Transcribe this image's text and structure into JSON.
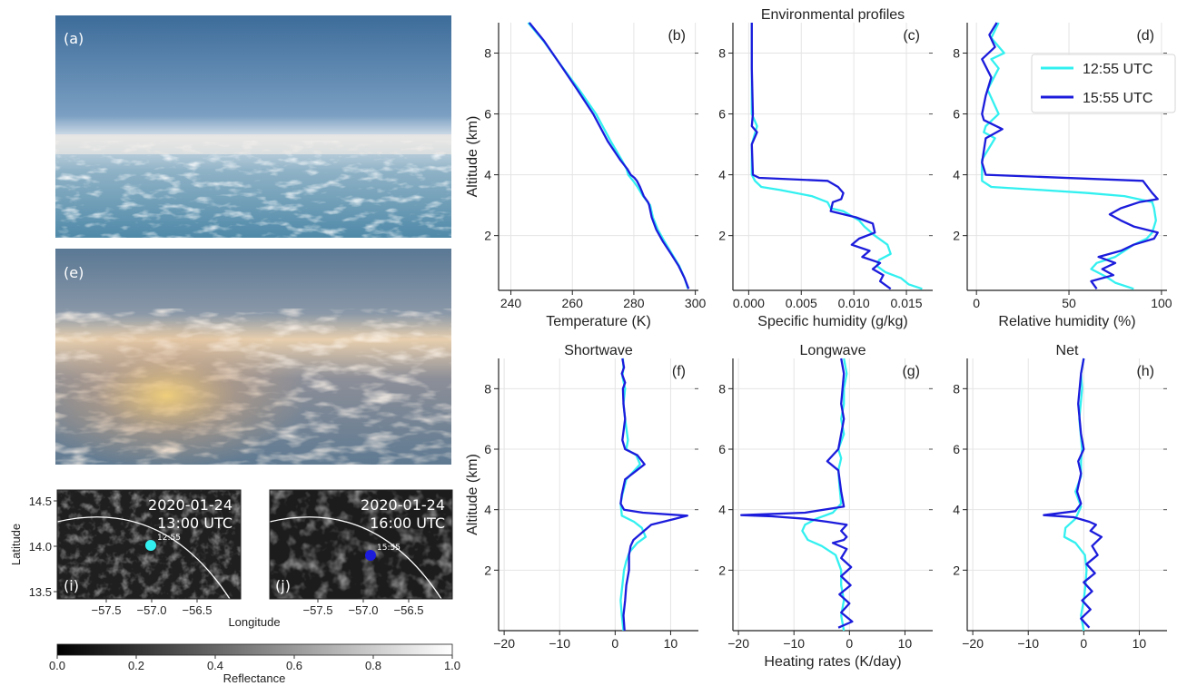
{
  "figure": {
    "photo_a_label": "(a)",
    "photo_e_label": "(e)",
    "colors": {
      "c1255": "#33f0f0",
      "c1555": "#1c1cdc"
    }
  },
  "maps": [
    {
      "label": "(i)",
      "date": "2020-01-24",
      "time": "13:00 UTC",
      "point_label": "12:55",
      "point_color": "#33f0f0"
    },
    {
      "label": "(j)",
      "date": "2020-01-24",
      "time": "16:00 UTC",
      "point_label": "15:55",
      "point_color": "#1c1cdc"
    }
  ],
  "map_axes": {
    "ylabel": "Latitude",
    "xlabel": "Longitude",
    "yticks": [
      "14.5",
      "14.0",
      "13.5"
    ],
    "xticks": [
      "−57.5",
      "−57.0",
      "−56.5"
    ]
  },
  "colorbar": {
    "label": "Reflectance",
    "ticks": [
      "0.0",
      "0.2",
      "0.4",
      "0.6",
      "0.8",
      "1.0"
    ],
    "range": [
      0,
      1
    ]
  },
  "chart_data": [
    {
      "type": "line",
      "panel": "(b)",
      "xlabel": "Temperature (K)",
      "ylabel": "Altitude (km)",
      "xlim": [
        236,
        301
      ],
      "ylim": [
        0.2,
        9
      ],
      "xticks": [
        240,
        260,
        280,
        300
      ],
      "yticks": [
        2,
        4,
        6,
        8
      ],
      "series": [
        {
          "name": "12:55 UTC",
          "color": "#33f0f0",
          "x": [
            297.6,
            296.5,
            294.8,
            292.4,
            290,
            287.8,
            286.2,
            285.3,
            284.5,
            283,
            281.2,
            279.8,
            278.2,
            277.6,
            276,
            272.5,
            267.7,
            262.2,
            256.3,
            250.6,
            245.6
          ],
          "y": [
            0.25,
            0.6,
            1,
            1.4,
            1.8,
            2.2,
            2.6,
            3,
            3.1,
            3.3,
            3.6,
            3.8,
            4,
            4.2,
            4.5,
            5.1,
            6,
            6.8,
            7.6,
            8.4,
            9
          ]
        },
        {
          "name": "15:55 UTC",
          "color": "#1c1cdc",
          "x": [
            297.8,
            296.5,
            294.6,
            292.1,
            289.5,
            287.3,
            285.8,
            285,
            284.6,
            283.2,
            282,
            281,
            280.2,
            279,
            277.8,
            275.5,
            271.5,
            266.8,
            261.6,
            256.2,
            250.8,
            246
          ],
          "y": [
            0.25,
            0.6,
            1,
            1.4,
            1.8,
            2.2,
            2.6,
            3,
            3.1,
            3.3,
            3.6,
            3.8,
            3.9,
            4,
            4.2,
            4.5,
            5.1,
            6,
            6.8,
            7.6,
            8.4,
            9
          ]
        }
      ]
    },
    {
      "type": "line",
      "panel": "(c)",
      "title": "Environmental profiles",
      "xlabel": "Specific humidity (g/kg)",
      "xlim": [
        -0.0015,
        0.0175
      ],
      "ylim": [
        0.2,
        9
      ],
      "xticks": [
        0.0,
        0.005,
        0.01,
        0.015
      ],
      "xtick_labels": [
        "0.000",
        "0.005",
        "0.010",
        "0.015"
      ],
      "yticks": [
        2,
        4,
        6,
        8
      ],
      "series": [
        {
          "name": "12:55 UTC",
          "color": "#33f0f0",
          "x": [
            0.0165,
            0.0152,
            0.0145,
            0.013,
            0.0122,
            0.0124,
            0.0135,
            0.0132,
            0.012,
            0.011,
            0.0105,
            0.009,
            0.0078,
            0.0075,
            0.006,
            0.003,
            0.0012,
            0.0006,
            0.0003,
            0.0003,
            0.0003,
            0.0008,
            0.0003,
            0.0003,
            0.0003
          ],
          "y": [
            0.25,
            0.4,
            0.6,
            0.8,
            1,
            1.2,
            1.4,
            1.7,
            2,
            2.3,
            2.5,
            2.8,
            2.9,
            3.1,
            3.3,
            3.5,
            3.6,
            3.8,
            4,
            4.5,
            5,
            5.6,
            6,
            7.5,
            9
          ]
        },
        {
          "name": "15:55 UTC",
          "color": "#1c1cdc",
          "x": [
            0.0135,
            0.0125,
            0.0128,
            0.0118,
            0.0125,
            0.0108,
            0.0115,
            0.0098,
            0.0105,
            0.012,
            0.0118,
            0.0102,
            0.0078,
            0.008,
            0.0088,
            0.009,
            0.0085,
            0.0075,
            0.001,
            0.0004,
            0.0003,
            0.0008,
            0.0003,
            0.0004,
            0.0003,
            0.0003,
            0.0003
          ],
          "y": [
            0.25,
            0.5,
            0.7,
            0.9,
            1.1,
            1.3,
            1.5,
            1.7,
            1.9,
            2.1,
            2.4,
            2.6,
            2.8,
            3.1,
            3.2,
            3.4,
            3.6,
            3.8,
            3.9,
            4,
            5,
            5.4,
            5.6,
            6,
            7.5,
            8.5,
            9
          ]
        }
      ]
    },
    {
      "type": "line",
      "panel": "(d)",
      "xlabel": "Relative humidity (%)",
      "xlim": [
        -5,
        103
      ],
      "ylim": [
        0.2,
        9
      ],
      "xticks": [
        0,
        50,
        100
      ],
      "yticks": [
        2,
        4,
        6,
        8
      ],
      "series": [
        {
          "name": "12:55 UTC",
          "color": "#33f0f0",
          "x": [
            85,
            75,
            70,
            62,
            65,
            75,
            80,
            85,
            92,
            95,
            97,
            96,
            95,
            80,
            60,
            35,
            8,
            3,
            3,
            10,
            4,
            5,
            12,
            6,
            12,
            8,
            15,
            8,
            12
          ],
          "y": [
            0.25,
            0.45,
            0.65,
            0.9,
            1.1,
            1.3,
            1.5,
            1.7,
            1.9,
            2.1,
            2.5,
            2.9,
            3.1,
            3.3,
            3.4,
            3.5,
            3.6,
            3.8,
            4.5,
            5.2,
            5.4,
            5.6,
            6,
            6.8,
            7.5,
            7.8,
            8,
            8.5,
            9
          ]
        },
        {
          "name": "15:55 UTC",
          "color": "#1c1cdc",
          "x": [
            65,
            62,
            74,
            68,
            75,
            66,
            78,
            85,
            96,
            98,
            85,
            78,
            72,
            78,
            88,
            98,
            95,
            90,
            5,
            3,
            5,
            14,
            4,
            3,
            5,
            8,
            3,
            10,
            7,
            11
          ],
          "y": [
            0.25,
            0.5,
            0.7,
            0.9,
            1.1,
            1.3,
            1.5,
            1.7,
            1.9,
            2.1,
            2.3,
            2.5,
            2.7,
            2.9,
            3.1,
            3.2,
            3.4,
            3.8,
            4,
            4.4,
            5.2,
            5.5,
            5.8,
            6,
            6.6,
            7.2,
            7.8,
            8.2,
            8.6,
            9
          ]
        }
      ]
    },
    {
      "type": "line",
      "panel": "(f)",
      "title": "Shortwave",
      "ylabel": "Altitude (km)",
      "xlim": [
        -21,
        15
      ],
      "ylim": [
        0,
        9
      ],
      "xticks": [
        -20,
        -10,
        0,
        10
      ],
      "yticks": [
        2,
        4,
        6,
        8
      ],
      "series": [
        {
          "name": "12:55 UTC",
          "color": "#33f0f0",
          "x": [
            1.5,
            1.2,
            1.0,
            1.3,
            1.6,
            2.0,
            2.6,
            4.0,
            5.5,
            4.8,
            3.4,
            1.2,
            1.0,
            1.3,
            2.0,
            4.5,
            3.8,
            2.0,
            2.3,
            1.8,
            1.5,
            1.8,
            1.3,
            1.5,
            1.4
          ],
          "y": [
            0,
            0.5,
            1,
            1.5,
            2,
            2.3,
            2.6,
            2.9,
            3.1,
            3.4,
            3.6,
            3.8,
            4.2,
            4.5,
            5,
            5.5,
            5.8,
            6,
            6.3,
            7,
            7.5,
            8,
            8.4,
            8.7,
            9
          ]
        },
        {
          "name": "15:55 UTC",
          "color": "#1c1cdc",
          "x": [
            1.7,
            1.5,
            1.8,
            2.0,
            2.5,
            2.5,
            2.8,
            3.3,
            4.6,
            6.5,
            10.8,
            13.0,
            5.0,
            1.6,
            1.0,
            1.2,
            1.8,
            5.3,
            4.0,
            1.8,
            1.3,
            1.8,
            1.5,
            1.4,
            1.8,
            1.2,
            1.6,
            1.3
          ],
          "y": [
            0,
            0.5,
            1,
            1.5,
            2,
            2.5,
            2.8,
            3.0,
            3.2,
            3.5,
            3.7,
            3.8,
            3.9,
            4.0,
            4.2,
            4.5,
            5,
            5.5,
            5.8,
            6,
            6.3,
            7,
            7.5,
            8,
            8.2,
            8.5,
            8.7,
            9
          ]
        }
      ]
    },
    {
      "type": "line",
      "panel": "(g)",
      "title": "Longwave",
      "xlabel": "Heating rates (K/day)",
      "xlim": [
        -21,
        15
      ],
      "ylim": [
        0,
        9
      ],
      "xticks": [
        -20,
        -10,
        0,
        10
      ],
      "yticks": [
        2,
        4,
        6,
        8
      ],
      "series": [
        {
          "name": "12:55 UTC",
          "color": "#33f0f0",
          "x": [
            -1,
            -1.5,
            -1,
            -1.5,
            -1.5,
            -2.5,
            -5,
            -7.5,
            -8.5,
            -8,
            -6,
            -3,
            -1.5,
            -1.8,
            -2,
            -1.5,
            -2,
            -1,
            -1.5,
            -1,
            -1,
            -0.5,
            -1
          ],
          "y": [
            0,
            0.5,
            1,
            1.5,
            2,
            2.5,
            2.8,
            3.0,
            3.3,
            3.5,
            3.7,
            3.9,
            4.2,
            4.8,
            5.3,
            5.7,
            6,
            6.5,
            7,
            7.5,
            8,
            8.5,
            9
          ]
        },
        {
          "name": "15:55 UTC",
          "color": "#1c1cdc",
          "x": [
            -2,
            0.5,
            -1.5,
            0,
            -1.8,
            0.2,
            -1.5,
            0.3,
            -1.5,
            -0.5,
            -3,
            -1,
            -0.5,
            -1.5,
            -0.5,
            -4,
            -8,
            -14,
            -19.5,
            -8,
            -1,
            -1.5,
            -2,
            -4,
            -2,
            -1.5,
            -1,
            -1.5,
            -1,
            -1.5
          ],
          "y": [
            0.1,
            0.3,
            0.6,
            0.9,
            1.2,
            1.5,
            1.8,
            2.1,
            2.4,
            2.7,
            2.9,
            3.0,
            3.1,
            3.3,
            3.5,
            3.6,
            3.7,
            3.78,
            3.82,
            3.9,
            4.1,
            4.6,
            5.3,
            5.6,
            6,
            6.5,
            7,
            7.5,
            8.5,
            9
          ]
        }
      ]
    },
    {
      "type": "line",
      "panel": "(h)",
      "title": "Net",
      "xlim": [
        -21,
        15
      ],
      "ylim": [
        0,
        9
      ],
      "xticks": [
        -20,
        -10,
        0,
        10
      ],
      "yticks": [
        2,
        4,
        6,
        8
      ],
      "series": [
        {
          "name": "12:55 UTC",
          "color": "#33f0f0",
          "x": [
            0,
            -0.5,
            0,
            0.3,
            0.5,
            0.2,
            -1.5,
            -3.5,
            -3.3,
            -1.5,
            -0.5,
            -1.5,
            -0.5,
            -0.5,
            -0.3,
            -0.8,
            -0.3,
            -0.5,
            0
          ],
          "y": [
            0,
            0.5,
            1,
            1.5,
            2,
            2.5,
            2.9,
            3.1,
            3.4,
            3.7,
            4.1,
            4.6,
            5.1,
            5.6,
            6,
            7,
            8,
            8.5,
            9
          ]
        },
        {
          "name": "15:55 UTC",
          "color": "#1c1cdc",
          "x": [
            1,
            -0.5,
            1.2,
            -0.3,
            1.5,
            0,
            2.0,
            0.5,
            2.5,
            1.5,
            3.2,
            1.2,
            2.2,
            1.0,
            -1.8,
            -7.2,
            -1.5,
            -0.5,
            -1.2,
            -0.5,
            -1,
            0,
            -0.5,
            -1,
            -0.5,
            0
          ],
          "y": [
            0.1,
            0.4,
            0.7,
            1.0,
            1.3,
            1.6,
            1.9,
            2.2,
            2.5,
            2.8,
            3.1,
            3.3,
            3.5,
            3.6,
            3.75,
            3.82,
            3.95,
            4.2,
            4.6,
            5.2,
            5.6,
            6,
            6.5,
            7.5,
            8.5,
            9
          ]
        }
      ]
    }
  ],
  "legend": {
    "entries": [
      "12:55 UTC",
      "15:55 UTC"
    ],
    "placement": "top-right of panel (d)"
  }
}
